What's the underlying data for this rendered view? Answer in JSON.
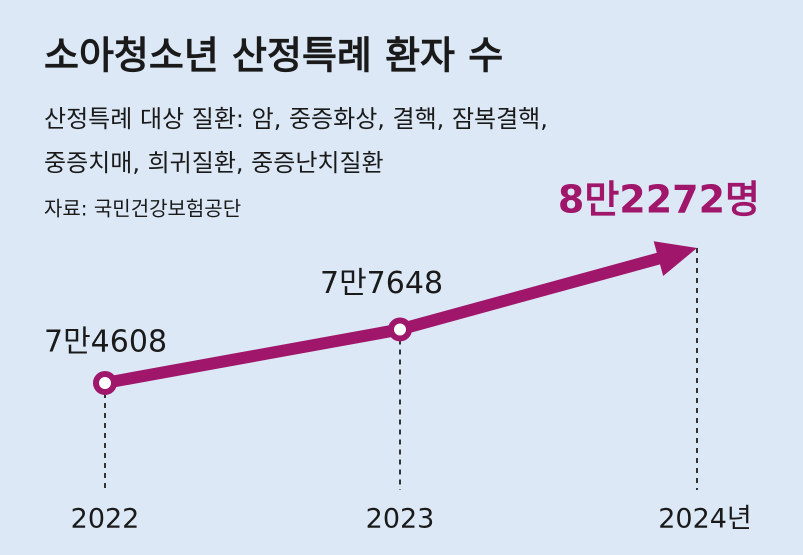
{
  "chart_data": {
    "type": "line",
    "title": "소아청소년 산정특례 환자 수",
    "subtitle": [
      "산정특례 대상 질환: 암, 중증화상, 결핵, 잠복결핵,",
      "중증치매, 희귀질환, 중증난치질환"
    ],
    "source": "자료: 국민건강보험공단",
    "categories": [
      "2022",
      "2023",
      "2024년"
    ],
    "values": [
      74608,
      77648,
      82272
    ],
    "value_labels": [
      "7만4608",
      "7만7648",
      "8만2272명"
    ],
    "color": "#a0166a"
  }
}
